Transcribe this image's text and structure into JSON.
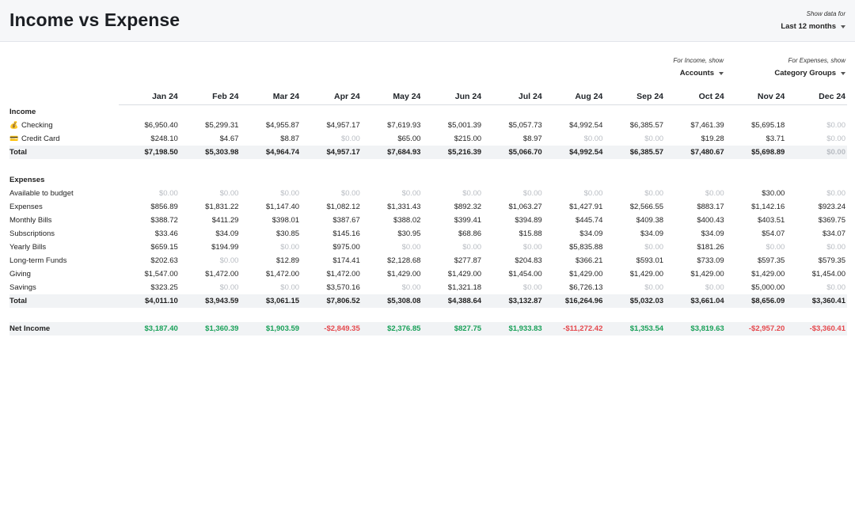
{
  "header": {
    "title": "Income vs Expense",
    "range_label": "Show data for",
    "range_value": "Last 12 months"
  },
  "pickers": {
    "income_label": "For Income, show",
    "income_value": "Accounts",
    "expense_label": "For Expenses, show",
    "expense_value": "Category Groups"
  },
  "months": [
    "Jan 24",
    "Feb 24",
    "Mar 24",
    "Apr 24",
    "May 24",
    "Jun 24",
    "Jul 24",
    "Aug 24",
    "Sep 24",
    "Oct 24",
    "Nov 24",
    "Dec 24"
  ],
  "income": {
    "section_label": "Income",
    "rows": [
      {
        "icon": "💰",
        "icon_name": "money-bag-icon",
        "label": "Checking",
        "values": [
          "$6,950.40",
          "$5,299.31",
          "$4,955.87",
          "$4,957.17",
          "$7,619.93",
          "$5,001.39",
          "$5,057.73",
          "$4,992.54",
          "$6,385.57",
          "$7,461.39",
          "$5,695.18",
          "$0.00"
        ]
      },
      {
        "icon": "💳",
        "icon_name": "credit-card-icon",
        "label": "Credit Card",
        "values": [
          "$248.10",
          "$4.67",
          "$8.87",
          "$0.00",
          "$65.00",
          "$215.00",
          "$8.97",
          "$0.00",
          "$0.00",
          "$19.28",
          "$3.71",
          "$0.00"
        ]
      }
    ],
    "total_label": "Total",
    "total": [
      "$7,198.50",
      "$5,303.98",
      "$4,964.74",
      "$4,957.17",
      "$7,684.93",
      "$5,216.39",
      "$5,066.70",
      "$4,992.54",
      "$6,385.57",
      "$7,480.67",
      "$5,698.89",
      "$0.00"
    ]
  },
  "expenses": {
    "section_label": "Expenses",
    "rows": [
      {
        "label": "Available to budget",
        "values": [
          "$0.00",
          "$0.00",
          "$0.00",
          "$0.00",
          "$0.00",
          "$0.00",
          "$0.00",
          "$0.00",
          "$0.00",
          "$0.00",
          "$30.00",
          "$0.00"
        ]
      },
      {
        "label": "Expenses",
        "values": [
          "$856.89",
          "$1,831.22",
          "$1,147.40",
          "$1,082.12",
          "$1,331.43",
          "$892.32",
          "$1,063.27",
          "$1,427.91",
          "$2,566.55",
          "$883.17",
          "$1,142.16",
          "$923.24"
        ]
      },
      {
        "label": "Monthly Bills",
        "values": [
          "$388.72",
          "$411.29",
          "$398.01",
          "$387.67",
          "$388.02",
          "$399.41",
          "$394.89",
          "$445.74",
          "$409.38",
          "$400.43",
          "$403.51",
          "$369.75"
        ]
      },
      {
        "label": "Subscriptions",
        "values": [
          "$33.46",
          "$34.09",
          "$30.85",
          "$145.16",
          "$30.95",
          "$68.86",
          "$15.88",
          "$34.09",
          "$34.09",
          "$34.09",
          "$54.07",
          "$34.07"
        ]
      },
      {
        "label": "Yearly Bills",
        "values": [
          "$659.15",
          "$194.99",
          "$0.00",
          "$975.00",
          "$0.00",
          "$0.00",
          "$0.00",
          "$5,835.88",
          "$0.00",
          "$181.26",
          "$0.00",
          "$0.00"
        ]
      },
      {
        "label": "Long-term Funds",
        "values": [
          "$202.63",
          "$0.00",
          "$12.89",
          "$174.41",
          "$2,128.68",
          "$277.87",
          "$204.83",
          "$366.21",
          "$593.01",
          "$733.09",
          "$597.35",
          "$579.35"
        ]
      },
      {
        "label": "Giving",
        "values": [
          "$1,547.00",
          "$1,472.00",
          "$1,472.00",
          "$1,472.00",
          "$1,429.00",
          "$1,429.00",
          "$1,454.00",
          "$1,429.00",
          "$1,429.00",
          "$1,429.00",
          "$1,429.00",
          "$1,454.00"
        ]
      },
      {
        "label": "Savings",
        "values": [
          "$323.25",
          "$0.00",
          "$0.00",
          "$3,570.16",
          "$0.00",
          "$1,321.18",
          "$0.00",
          "$6,726.13",
          "$0.00",
          "$0.00",
          "$5,000.00",
          "$0.00"
        ]
      }
    ],
    "total_label": "Total",
    "total": [
      "$4,011.10",
      "$3,943.59",
      "$3,061.15",
      "$7,806.52",
      "$5,308.08",
      "$4,388.64",
      "$3,132.87",
      "$16,264.96",
      "$5,032.03",
      "$3,661.04",
      "$8,656.09",
      "$3,360.41"
    ]
  },
  "net_income": {
    "label": "Net Income",
    "values": [
      "$3,187.40",
      "$1,360.39",
      "$1,903.59",
      "-$2,849.35",
      "$2,376.85",
      "$827.75",
      "$1,933.83",
      "-$11,272.42",
      "$1,353.54",
      "$3,819.63",
      "-$2,957.20",
      "-$3,360.41"
    ]
  },
  "colors": {
    "income_accent": "#18a058",
    "expense_accent": "#e5484d",
    "zero_value": "#b8bcc2",
    "total_row_bg": "#f1f3f5"
  }
}
